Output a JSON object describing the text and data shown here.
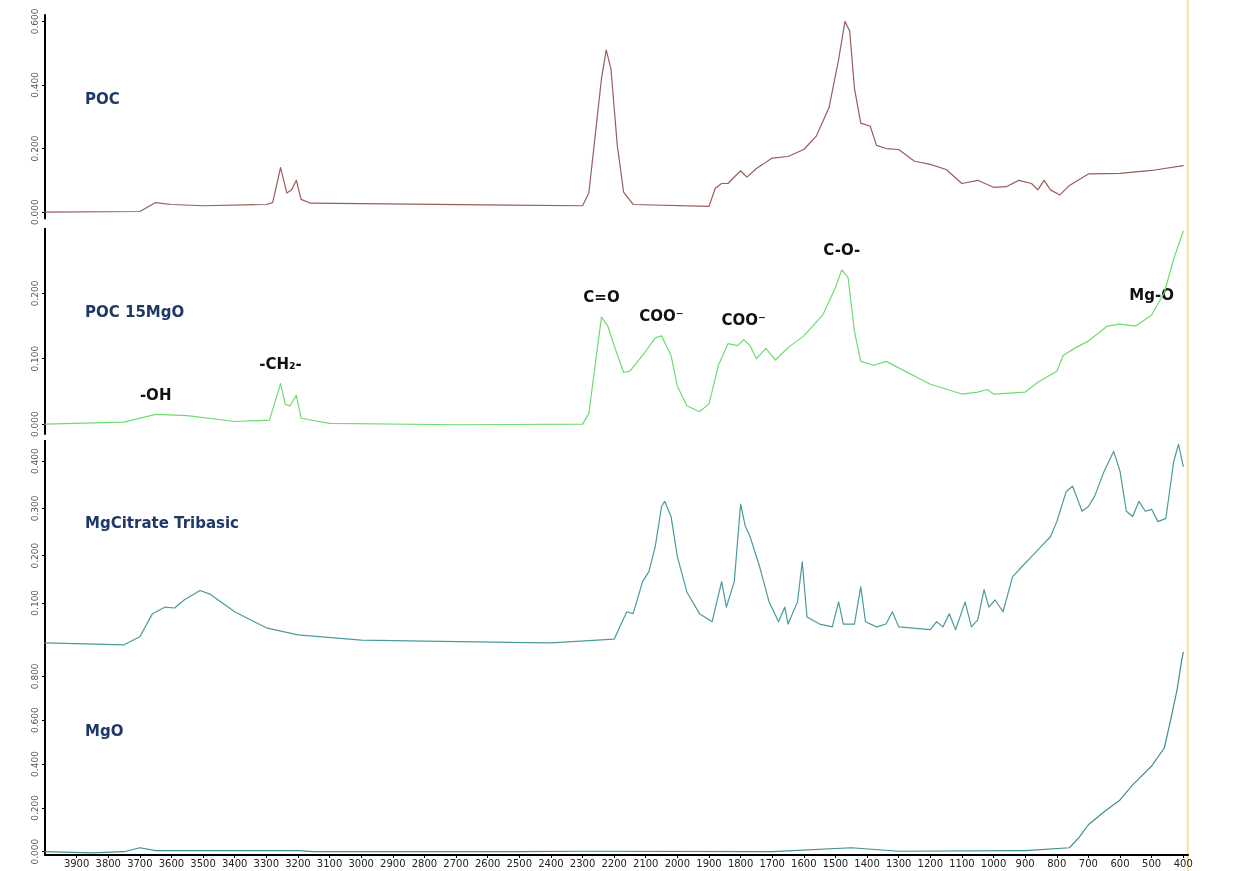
{
  "chart_data": [
    {
      "type": "line",
      "tick_labels": "y",
      "grid": false,
      "legend": false,
      "marker": "none",
      "line_style": "solid",
      "xlim": [
        4000,
        385
      ],
      "ylim": [
        -0.02,
        0.62
      ],
      "yticks": [
        {
          "value": 0,
          "label": "0.000"
        },
        {
          "value": 0.2,
          "label": "0.200"
        },
        {
          "value": 0.4,
          "label": "0.400"
        },
        {
          "value": 0.6,
          "label": "0.600"
        }
      ],
      "ref_lines": [
        {
          "axis": "x",
          "value": 386,
          "color": "#f2e39a"
        }
      ],
      "series": [
        {
          "name": "POC",
          "color": "#9b5c5c",
          "x": [
            4000,
            3700,
            3650,
            3600,
            3500,
            3300,
            3280,
            3255,
            3235,
            3220,
            3205,
            3190,
            3160,
            2300,
            2280,
            2260,
            2240,
            2225,
            2210,
            2190,
            2170,
            2140,
            1900,
            1880,
            1860,
            1840,
            1800,
            1780,
            1750,
            1700,
            1650,
            1600,
            1560,
            1520,
            1490,
            1470,
            1455,
            1440,
            1420,
            1390,
            1370,
            1340,
            1300,
            1250,
            1200,
            1150,
            1100,
            1050,
            1000,
            960,
            920,
            880,
            860,
            840,
            820,
            790,
            760,
            700,
            600,
            500,
            400
          ],
          "values": [
            0,
            0.002,
            0.03,
            0.024,
            0.02,
            0.024,
            0.03,
            0.14,
            0.06,
            0.07,
            0.1,
            0.04,
            0.028,
            0.02,
            0.06,
            0.24,
            0.42,
            0.51,
            0.45,
            0.21,
            0.063,
            0.024,
            0.018,
            0.075,
            0.09,
            0.09,
            0.13,
            0.11,
            0.137,
            0.17,
            0.175,
            0.197,
            0.24,
            0.33,
            0.48,
            0.6,
            0.57,
            0.39,
            0.28,
            0.27,
            0.21,
            0.2,
            0.197,
            0.16,
            0.15,
            0.134,
            0.09,
            0.1,
            0.078,
            0.08,
            0.1,
            0.09,
            0.07,
            0.1,
            0.07,
            0.054,
            0.084,
            0.12,
            0.122,
            0.131,
            0.146
          ]
        }
      ]
    },
    {
      "type": "line",
      "tick_labels": "y",
      "grid": false,
      "legend": false,
      "marker": "none",
      "line_style": "solid",
      "xlim": [
        4000,
        385
      ],
      "ylim": [
        -0.015,
        0.3
      ],
      "yticks": [
        {
          "value": 0,
          "label": "0.000"
        },
        {
          "value": 0.1,
          "label": "0.100"
        },
        {
          "value": 0.2,
          "label": "0.200"
        }
      ],
      "ref_lines": [
        {
          "axis": "x",
          "value": 386,
          "color": "#f2e39a"
        }
      ],
      "annotations": [
        {
          "text": "-OH",
          "x": 3650,
          "y": 0.015
        },
        {
          "text": "-CH₂-",
          "x": 3255,
          "y": 0.062
        },
        {
          "text": "C=O",
          "x": 2240,
          "y": 0.164
        },
        {
          "text": "COO⁻",
          "x": 2050,
          "y": 0.135
        },
        {
          "text": "COO⁻",
          "x": 1790,
          "y": 0.129
        },
        {
          "text": "C-O-",
          "x": 1480,
          "y": 0.236
        },
        {
          "text": "Mg-O",
          "x": 500,
          "y": 0.167
        }
      ],
      "series": [
        {
          "name": "POC 15MgO",
          "color": "#6fdc6f",
          "x": [
            4000,
            3750,
            3650,
            3550,
            3400,
            3290,
            3255,
            3240,
            3225,
            3205,
            3190,
            3100,
            2700,
            2300,
            2280,
            2260,
            2240,
            2220,
            2200,
            2170,
            2150,
            2110,
            2070,
            2050,
            2020,
            2000,
            1970,
            1930,
            1900,
            1870,
            1840,
            1810,
            1790,
            1770,
            1750,
            1720,
            1690,
            1650,
            1600,
            1540,
            1500,
            1480,
            1460,
            1440,
            1420,
            1380,
            1340,
            1300,
            1200,
            1100,
            1050,
            1020,
            1000,
            900,
            860,
            800,
            780,
            740,
            700,
            640,
            600,
            550,
            500,
            460,
            430,
            400
          ],
          "values": [
            0,
            0.003,
            0.015,
            0.013,
            0.004,
            0.006,
            0.062,
            0.03,
            0.028,
            0.044,
            0.009,
            0.001,
            -0.001,
            0,
            0.016,
            0.09,
            0.164,
            0.15,
            0.12,
            0.079,
            0.081,
            0.105,
            0.132,
            0.135,
            0.105,
            0.058,
            0.028,
            0.019,
            0.031,
            0.09,
            0.123,
            0.12,
            0.129,
            0.12,
            0.1,
            0.116,
            0.098,
            0.117,
            0.135,
            0.167,
            0.209,
            0.236,
            0.224,
            0.142,
            0.096,
            0.09,
            0.096,
            0.086,
            0.061,
            0.046,
            0.049,
            0.053,
            0.046,
            0.049,
            0.064,
            0.081,
            0.105,
            0.117,
            0.127,
            0.15,
            0.153,
            0.15,
            0.167,
            0.201,
            0.253,
            0.295
          ]
        }
      ]
    },
    {
      "type": "line",
      "tick_labels": "y",
      "grid": false,
      "legend": false,
      "marker": "none",
      "line_style": "solid",
      "xlim": [
        4000,
        385
      ],
      "ylim": [
        0,
        0.445
      ],
      "yticks": [
        {
          "value": 0.1,
          "label": "0.100"
        },
        {
          "value": 0.2,
          "label": "0.200"
        },
        {
          "value": 0.3,
          "label": "0.300"
        },
        {
          "value": 0.4,
          "label": "0.400"
        }
      ],
      "ref_lines": [
        {
          "axis": "x",
          "value": 386,
          "color": "#f2e39a"
        }
      ],
      "series": [
        {
          "name": "MgCitrate Tribasic",
          "color": "#4b9b9b",
          "x": [
            4000,
            3750,
            3700,
            3660,
            3620,
            3590,
            3560,
            3510,
            3480,
            3400,
            3300,
            3200,
            3000,
            2800,
            2400,
            2200,
            2160,
            2140,
            2110,
            2090,
            2070,
            2050,
            2040,
            2020,
            2000,
            1970,
            1930,
            1890,
            1860,
            1845,
            1820,
            1800,
            1785,
            1770,
            1740,
            1710,
            1680,
            1660,
            1650,
            1620,
            1605,
            1590,
            1550,
            1510,
            1490,
            1475,
            1440,
            1420,
            1405,
            1370,
            1340,
            1320,
            1300,
            1200,
            1180,
            1160,
            1140,
            1120,
            1090,
            1070,
            1050,
            1030,
            1015,
            995,
            970,
            940,
            910,
            880,
            850,
            820,
            800,
            770,
            750,
            720,
            700,
            680,
            650,
            620,
            600,
            580,
            560,
            540,
            520,
            500,
            480,
            455,
            430,
            415,
            400
          ],
          "values": [
            0.015,
            0.011,
            0.028,
            0.077,
            0.091,
            0.089,
            0.106,
            0.126,
            0.119,
            0.081,
            0.047,
            0.032,
            0.021,
            0.019,
            0.015,
            0.023,
            0.081,
            0.077,
            0.145,
            0.166,
            0.219,
            0.304,
            0.315,
            0.283,
            0.198,
            0.123,
            0.077,
            0.06,
            0.145,
            0.091,
            0.145,
            0.309,
            0.262,
            0.24,
            0.177,
            0.102,
            0.06,
            0.091,
            0.055,
            0.102,
            0.187,
            0.07,
            0.055,
            0.049,
            0.102,
            0.055,
            0.055,
            0.134,
            0.06,
            0.049,
            0.055,
            0.081,
            0.049,
            0.043,
            0.06,
            0.049,
            0.077,
            0.043,
            0.102,
            0.049,
            0.064,
            0.128,
            0.091,
            0.106,
            0.081,
            0.155,
            0.177,
            0.198,
            0.219,
            0.24,
            0.272,
            0.336,
            0.347,
            0.294,
            0.304,
            0.326,
            0.379,
            0.421,
            0.379,
            0.294,
            0.283,
            0.315,
            0.294,
            0.298,
            0.272,
            0.279,
            0.4,
            0.436,
            0.389
          ]
        }
      ]
    },
    {
      "type": "line",
      "grid": false,
      "legend": false,
      "marker": "none",
      "line_style": "solid",
      "xlim": [
        4000,
        385
      ],
      "ylim": [
        -0.015,
        0.92
      ],
      "xticks": [
        3900,
        3800,
        3700,
        3600,
        3500,
        3400,
        3300,
        3200,
        3100,
        3000,
        2900,
        2800,
        2700,
        2600,
        2500,
        2400,
        2300,
        2200,
        2100,
        2000,
        1900,
        1800,
        1700,
        1600,
        1500,
        1400,
        1300,
        1200,
        1100,
        1000,
        900,
        800,
        700,
        600,
        500,
        400
      ],
      "yticks": [
        {
          "value": 0,
          "label": "0.000"
        },
        {
          "value": 0.2,
          "label": "0.200"
        },
        {
          "value": 0.4,
          "label": "0.400"
        },
        {
          "value": 0.6,
          "label": "0.600"
        },
        {
          "value": 0.8,
          "label": "0.800"
        }
      ],
      "ref_lines": [
        {
          "axis": "x",
          "value": 386,
          "color": "#f2e39a"
        }
      ],
      "series": [
        {
          "name": "MgO",
          "color": "#3f8f8f",
          "x": [
            4000,
            3850,
            3750,
            3700,
            3650,
            3200,
            3150,
            2500,
            2300,
            1700,
            1450,
            1300,
            900,
            760,
            730,
            700,
            650,
            600,
            560,
            500,
            460,
            440,
            420,
            405,
            400
          ],
          "values": [
            0,
            -0.005,
            0,
            0.018,
            0.005,
            0.005,
            0,
            0,
            0.002,
            0,
            0.018,
            0.002,
            0.005,
            0.018,
            0.064,
            0.123,
            0.182,
            0.236,
            0.305,
            0.391,
            0.473,
            0.6,
            0.736,
            0.873,
            0.909
          ]
        }
      ]
    }
  ]
}
